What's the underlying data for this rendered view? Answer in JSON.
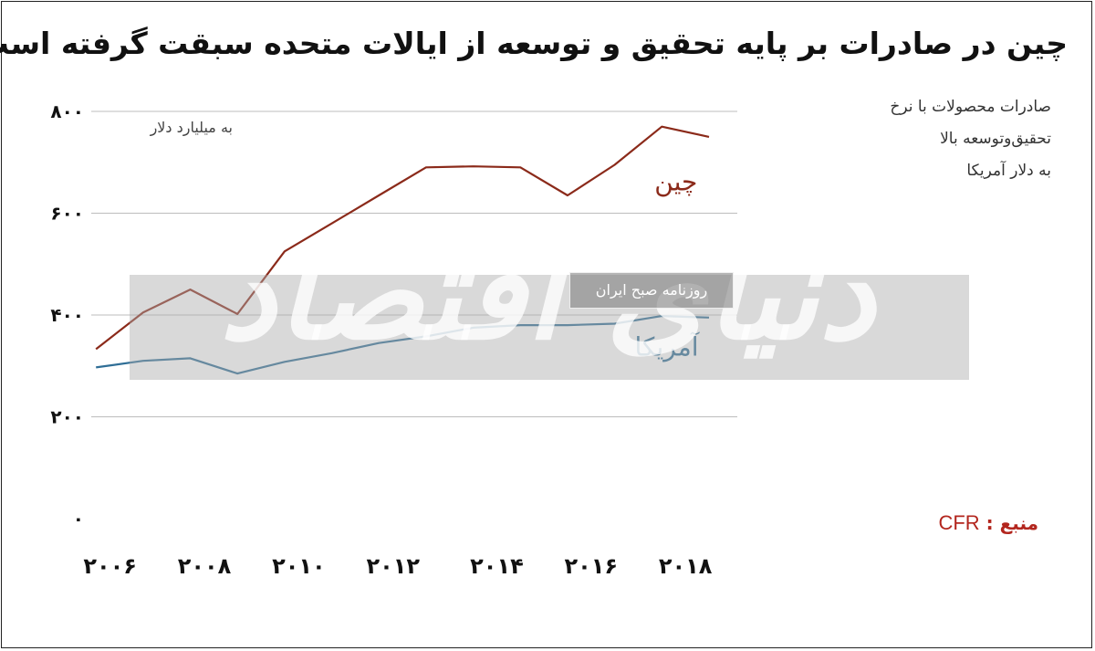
{
  "chart_data": {
    "type": "line",
    "title": "چین در صادرات بر پایه تحقیق و توسعه از ایالات متحده سبقت گرفته است",
    "description_lines": [
      "صادرات محصولات با نرخ",
      "تحقیق‌وتوسعه بالا",
      "به دلار آمریکا"
    ],
    "unit_label": "به میلیارد دلار",
    "ylim": [
      0,
      800
    ],
    "y_ticks": [
      {
        "value": 0,
        "label": "۰"
      },
      {
        "value": 200,
        "label": "۲۰۰"
      },
      {
        "value": 400,
        "label": "۴۰۰"
      },
      {
        "value": 600,
        "label": "۶۰۰"
      },
      {
        "value": 800,
        "label": "۸۰۰"
      }
    ],
    "xlim": [
      2005.9,
      2019.6
    ],
    "x_ticks": [
      {
        "value": 2006.3,
        "label": "۲۰۰۶"
      },
      {
        "value": 2008.3,
        "label": "۲۰۰۸"
      },
      {
        "value": 2010.3,
        "label": "۲۰۱۰"
      },
      {
        "value": 2012.3,
        "label": "۲۰۱۲"
      },
      {
        "value": 2014.5,
        "label": "۲۰۱۴"
      },
      {
        "value": 2016.5,
        "label": "۲۰۱۶"
      },
      {
        "value": 2018.5,
        "label": "۲۰۱۸"
      }
    ],
    "grid": true,
    "series": [
      {
        "name": "چین",
        "color": "#8b2a1a",
        "x": [
          2006,
          2007,
          2008,
          2009,
          2010,
          2011,
          2012,
          2013,
          2014,
          2015,
          2016,
          2017,
          2018,
          2019
        ],
        "values": [
          333,
          405,
          450,
          402,
          525,
          580,
          635,
          690,
          692,
          690,
          635,
          695,
          770,
          750
        ]
      },
      {
        "name": "آمریکا",
        "color": "#2f6e96",
        "x": [
          2006,
          2007,
          2008,
          2009,
          2010,
          2011,
          2012,
          2013,
          2014,
          2015,
          2016,
          2017,
          2018,
          2019
        ],
        "values": [
          297,
          310,
          315,
          285,
          308,
          325,
          345,
          358,
          375,
          380,
          380,
          383,
          398,
          395
        ]
      }
    ],
    "source_label": "منبع :",
    "source_value": "CFR"
  },
  "watermark": {
    "brand": "دنیای اقتصاد",
    "tag": "روزنامه صبح ایران"
  }
}
